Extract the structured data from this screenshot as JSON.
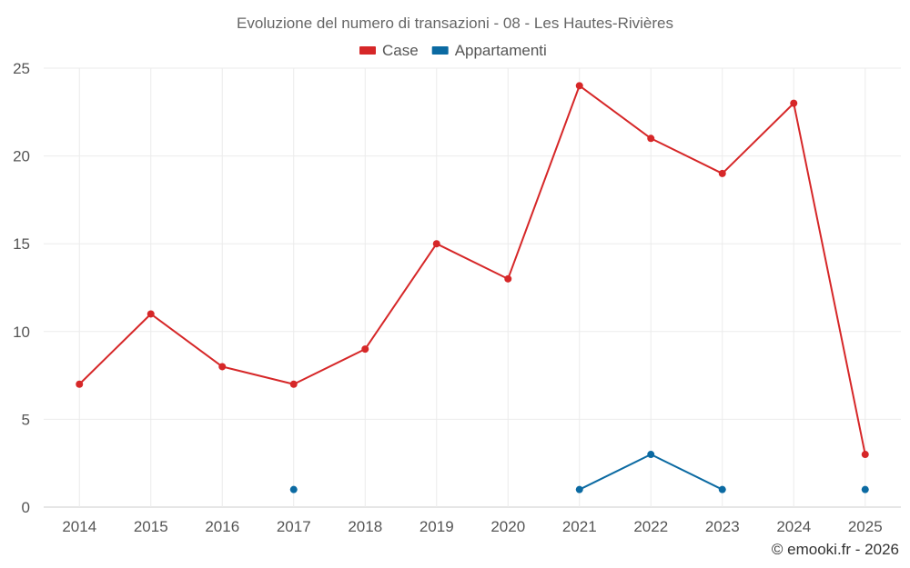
{
  "chart_data": {
    "type": "line",
    "title": "Evoluzione del numero di transazioni - 08 - Les Hautes-Rivières",
    "categories": [
      "2014",
      "2015",
      "2016",
      "2017",
      "2018",
      "2019",
      "2020",
      "2021",
      "2022",
      "2023",
      "2024",
      "2025"
    ],
    "series": [
      {
        "name": "Case",
        "color": "#d62728",
        "values": [
          7,
          11,
          8,
          7,
          9,
          15,
          13,
          24,
          21,
          19,
          23,
          3
        ]
      },
      {
        "name": "Appartamenti",
        "color": "#0b6aa2",
        "values": [
          null,
          null,
          null,
          1,
          null,
          null,
          null,
          1,
          3,
          1,
          null,
          1
        ]
      }
    ],
    "ylim": [
      0,
      25
    ],
    "yticks": [
      0,
      5,
      10,
      15,
      20,
      25
    ],
    "xlabel": "",
    "ylabel": "",
    "grid": true,
    "legend_position": "top-center"
  },
  "credit": "© emooki.fr - 2026"
}
